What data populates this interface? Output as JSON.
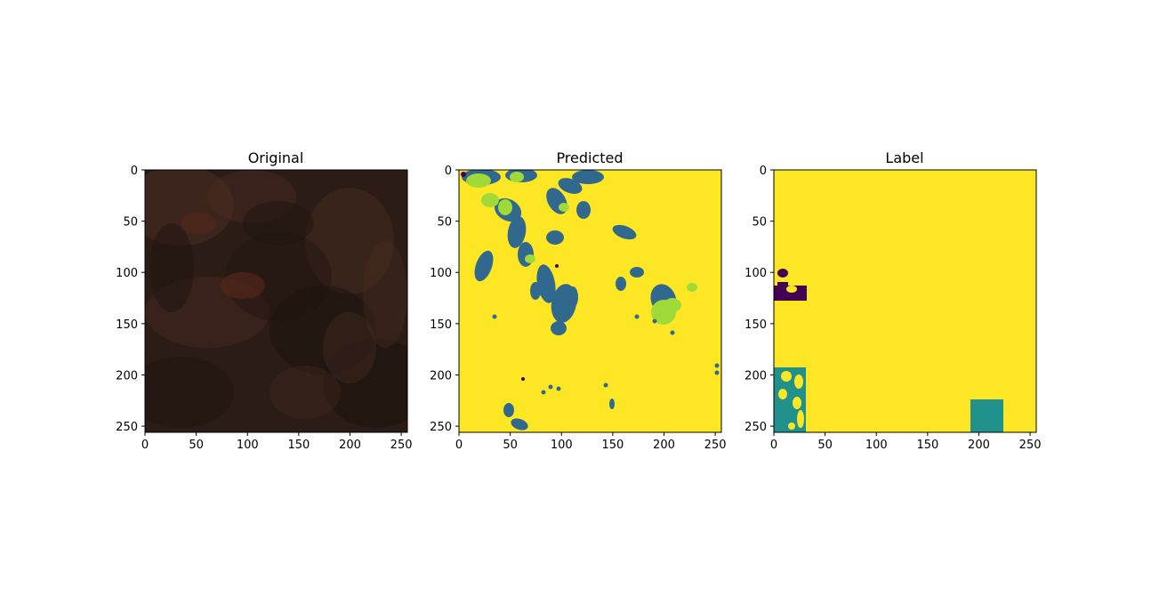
{
  "chart_data": [
    {
      "type": "image",
      "title": "Original",
      "xticks": [
        0,
        50,
        100,
        150,
        200,
        250
      ],
      "yticks": [
        0,
        50,
        100,
        150,
        200,
        250
      ],
      "extent": [
        0,
        256
      ],
      "palette": {
        "base": "#2c1c16",
        "dark": "#1e1410",
        "light": "#4a2e22",
        "rust": "#5a2a1a"
      }
    },
    {
      "type": "heatmap",
      "title": "Predicted",
      "xticks": [
        0,
        50,
        100,
        150,
        200,
        250
      ],
      "yticks": [
        0,
        50,
        100,
        150,
        200,
        250
      ],
      "extent": [
        0,
        256
      ],
      "classes": {
        "background": "#fde725",
        "class_teal": "#31688e",
        "class_green": "#a0da39",
        "class_purple": "#440154"
      }
    },
    {
      "type": "heatmap",
      "title": "Label",
      "xticks": [
        0,
        50,
        100,
        150,
        200,
        250
      ],
      "yticks": [
        0,
        50,
        100,
        150,
        200,
        250
      ],
      "extent": [
        0,
        256
      ],
      "classes": {
        "background": "#fde725",
        "class_teal": "#21918c",
        "class_purple": "#440154"
      }
    }
  ]
}
